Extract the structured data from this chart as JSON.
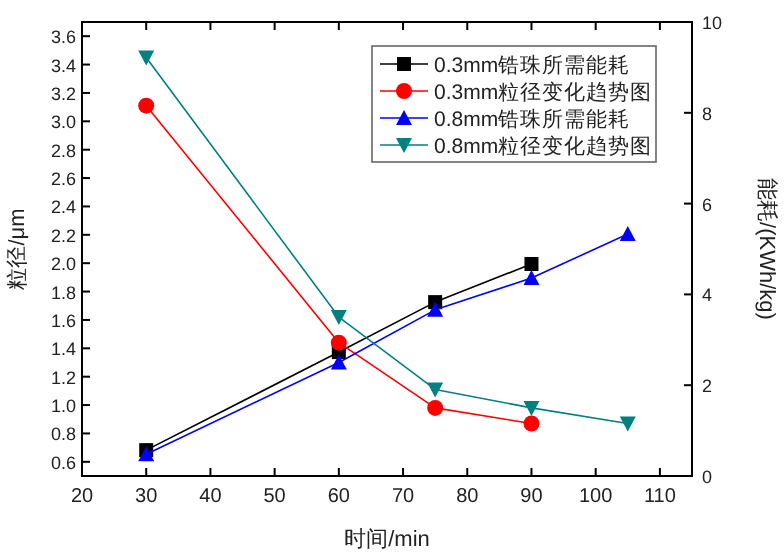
{
  "chart_data": {
    "type": "line",
    "xlabel": "时间/min",
    "ylabel": "粒径/μm",
    "y2label": "能耗/(KWh/kg)",
    "xlim": [
      20,
      115
    ],
    "xticks": [
      20,
      30,
      40,
      50,
      60,
      70,
      80,
      90,
      100,
      110
    ],
    "ylim": [
      0.5,
      3.7
    ],
    "yticks": [
      0.6,
      0.8,
      {
        "value": 1,
        "label": "1.0"
      },
      1.2,
      1.4,
      1.6,
      1.8,
      {
        "value": 2,
        "label": "2.0"
      },
      2.2,
      2.4,
      2.6,
      2.8,
      {
        "value": 3,
        "label": "3.0"
      },
      3.2,
      3.4,
      3.6
    ],
    "y2lim": [
      0,
      10
    ],
    "y2ticks": [
      0,
      2,
      4,
      6,
      8,
      10
    ],
    "legend": "top right",
    "grid": false,
    "series": [
      {
        "name": "0.3mm锆珠所需能耗",
        "color": "#000000",
        "marker": "square",
        "axis": "y2",
        "x": [
          30,
          60,
          75,
          90
        ],
        "values": [
          0.57,
          2.73,
          3.83,
          4.67
        ]
      },
      {
        "name": "0.3mm粒径变化趋势图",
        "color": "#ff0000",
        "marker": "circle",
        "x": [
          30,
          60,
          75,
          90
        ],
        "values": [
          3.11,
          1.44,
          0.98,
          0.87
        ]
      },
      {
        "name": "0.8mm锆珠所需能耗",
        "color": "#0000ff",
        "marker": "triangle",
        "axis": "y2",
        "x": [
          30,
          60,
          75,
          90,
          105
        ],
        "values": [
          0.48,
          2.5,
          3.66,
          4.36,
          5.33
        ]
      },
      {
        "name": "0.8mm粒径变化趋势图",
        "color": "#008080",
        "marker": "triangle-down",
        "x": [
          30,
          60,
          75,
          90,
          105
        ],
        "values": [
          3.45,
          1.62,
          1.11,
          0.98,
          0.87
        ]
      }
    ]
  }
}
